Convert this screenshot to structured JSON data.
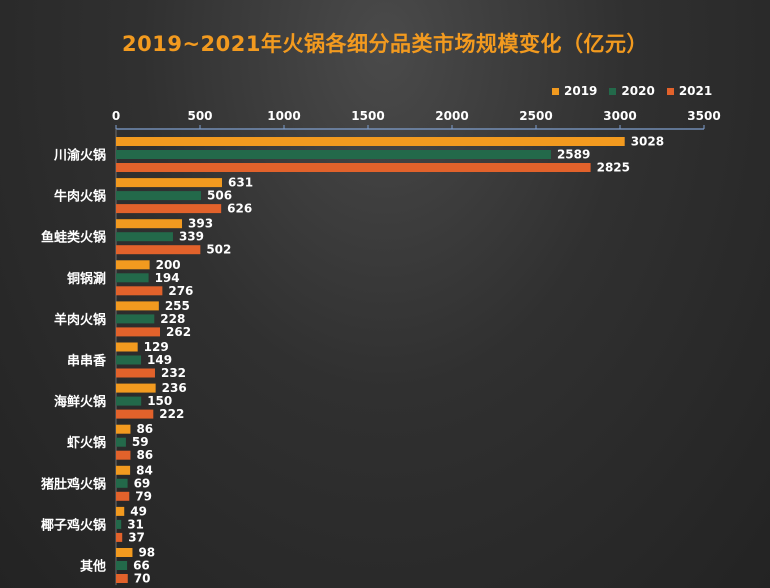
{
  "chart_data": {
    "type": "bar",
    "orientation": "horizontal",
    "title": "2019~2021年火锅各细分品类市场规模变化（亿元）",
    "categories": [
      "川渝火锅",
      "牛肉火锅",
      "鱼蛙类火锅",
      "铜锅涮",
      "羊肉火锅",
      "串串香",
      "海鲜火锅",
      "虾火锅",
      "猪肚鸡火锅",
      "椰子鸡火锅",
      "其他"
    ],
    "series": [
      {
        "name": "2019",
        "color": "#f29a1f",
        "values": [
          3028,
          631,
          393,
          200,
          255,
          129,
          236,
          86,
          84,
          49,
          98
        ]
      },
      {
        "name": "2020",
        "color": "#23694a",
        "values": [
          2589,
          506,
          339,
          194,
          228,
          149,
          150,
          59,
          69,
          31,
          66
        ]
      },
      {
        "name": "2021",
        "color": "#e2622b",
        "values": [
          2825,
          626,
          502,
          276,
          262,
          232,
          222,
          86,
          79,
          37,
          70
        ]
      }
    ],
    "xlim": [
      0,
      3500
    ],
    "xticks": [
      0,
      500,
      1000,
      1500,
      2000,
      2500,
      3000,
      3500
    ],
    "xaxis_position": "top",
    "legend_position": "top-right",
    "grid": false,
    "data_labels": true
  }
}
